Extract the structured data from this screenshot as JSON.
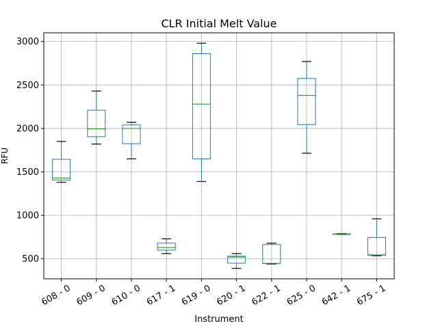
{
  "chart_data": {
    "type": "box",
    "title": "CLR Initial Melt Value",
    "xlabel": "Instrument",
    "ylabel": "RFU",
    "ylim": [
      270,
      3100
    ],
    "yticks": [
      500,
      1000,
      1500,
      2000,
      2500,
      3000
    ],
    "grid": true,
    "legend": "none",
    "colors": {
      "box": "#1f77b4",
      "median": "#2ca02c",
      "whisker": "#000000",
      "grid": "#b0b0b0"
    },
    "categories": [
      "608 - 0",
      "609 - 0",
      "610 - 0",
      "617 - 1",
      "619 - 0",
      "620 - 1",
      "622 - 1",
      "625 - 0",
      "642 - 1",
      "675 - 1"
    ],
    "boxes": [
      {
        "label": "608 - 0",
        "whisker_low": 1380,
        "q1": 1405,
        "median": 1430,
        "q3": 1645,
        "whisker_high": 1850
      },
      {
        "label": "609 - 0",
        "whisker_low": 1820,
        "q1": 1905,
        "median": 1995,
        "q3": 2210,
        "whisker_high": 2430
      },
      {
        "label": "610 - 0",
        "whisker_low": 1650,
        "q1": 1825,
        "median": 2000,
        "q3": 2040,
        "whisker_high": 2070
      },
      {
        "label": "617 - 1",
        "whisker_low": 560,
        "q1": 600,
        "median": 630,
        "q3": 680,
        "whisker_high": 730
      },
      {
        "label": "619 - 0",
        "whisker_low": 1390,
        "q1": 1650,
        "median": 2280,
        "q3": 2860,
        "whisker_high": 2980
      },
      {
        "label": "620 - 1",
        "whisker_low": 390,
        "q1": 450,
        "median": 520,
        "q3": 530,
        "whisker_high": 560
      },
      {
        "label": "622 - 1",
        "whisker_low": 440,
        "q1": 445,
        "median": 448,
        "q3": 665,
        "whisker_high": 680
      },
      {
        "label": "625 - 0",
        "whisker_low": 1715,
        "q1": 2045,
        "median": 2380,
        "q3": 2575,
        "whisker_high": 2770
      },
      {
        "label": "642 - 1",
        "whisker_low": 780,
        "q1": 782,
        "median": 785,
        "q3": 787,
        "whisker_high": 790
      },
      {
        "label": "675 - 1",
        "whisker_low": 535,
        "q1": 540,
        "median": 545,
        "q3": 745,
        "whisker_high": 960
      }
    ]
  }
}
